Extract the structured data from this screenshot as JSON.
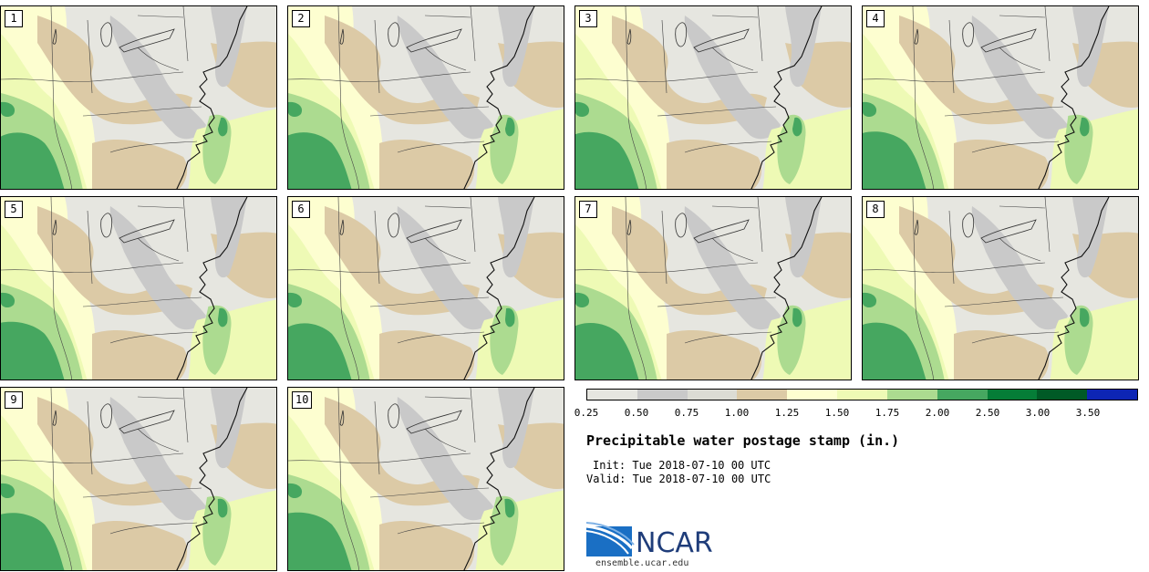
{
  "title": "Precipitable water postage stamp (in.)",
  "init": "Init: Tue 2018-07-10 00 UTC",
  "valid": "Valid: Tue 2018-07-10 00 UTC",
  "logo": {
    "name": "NCAR",
    "url": "ensemble.ucar.edu"
  },
  "stamps": [
    {
      "label": "1"
    },
    {
      "label": "2"
    },
    {
      "label": "3"
    },
    {
      "label": "4"
    },
    {
      "label": "5"
    },
    {
      "label": "6"
    },
    {
      "label": "7"
    },
    {
      "label": "8"
    },
    {
      "label": "9"
    },
    {
      "label": "10"
    }
  ],
  "colorbar": {
    "ticks": [
      "0.25",
      "0.50",
      "0.75",
      "1.00",
      "1.25",
      "1.50",
      "1.75",
      "2.00",
      "2.50",
      "3.00",
      "3.50"
    ],
    "colors": [
      "#e6e6e0",
      "#c9c9c9",
      "#dcdcd4",
      "#dccaa6",
      "#fdfed0",
      "#eefab5",
      "#acdb90",
      "#46a760",
      "#057d37",
      "#005a26",
      "#0d25b5"
    ]
  },
  "map_colors": {
    "gray": "#c9c9c9",
    "light_gray": "#e6e6e0",
    "tan": "#dccaa6",
    "cream": "#fdfed0",
    "light_yellow_green": "#eefab5",
    "light_green": "#acdb90",
    "green": "#46a760",
    "dark_green": "#057d37"
  }
}
